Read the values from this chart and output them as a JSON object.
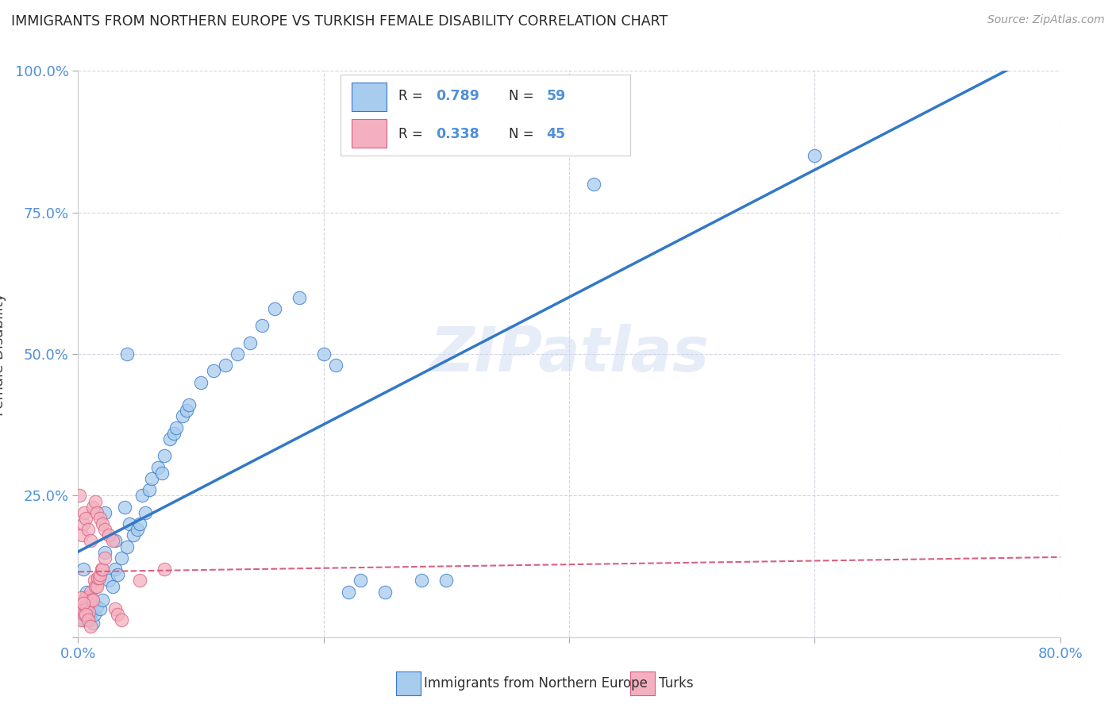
{
  "title": "IMMIGRANTS FROM NORTHERN EUROPE VS TURKISH FEMALE DISABILITY CORRELATION CHART",
  "source": "Source: ZipAtlas.com",
  "ylabel": "Female Disability",
  "watermark": "ZIPatlas",
  "legend_label1": "Immigrants from Northern Europe",
  "legend_label2": "Turks",
  "R1": "0.789",
  "N1": "59",
  "R2": "0.338",
  "N2": "45",
  "xlim": [
    0.0,
    80.0
  ],
  "ylim": [
    0.0,
    100.0
  ],
  "color_blue": "#a8ccee",
  "color_pink": "#f4b0c0",
  "line_blue": "#3378c8",
  "line_pink": "#d86080",
  "background": "#ffffff",
  "grid_color": "#d0d0e0",
  "title_color": "#282828",
  "axis_color": "#5090d8",
  "blue_points_x": [
    0.3,
    0.5,
    0.6,
    0.7,
    0.8,
    0.9,
    1.0,
    1.1,
    1.2,
    1.3,
    1.5,
    1.8,
    2.0,
    2.2,
    2.5,
    2.8,
    3.0,
    3.2,
    3.5,
    3.8,
    4.0,
    4.2,
    4.5,
    4.8,
    5.0,
    5.2,
    5.5,
    5.8,
    6.0,
    6.5,
    6.8,
    7.0,
    7.5,
    7.8,
    8.0,
    8.5,
    8.8,
    9.0,
    10.0,
    11.0,
    12.0,
    13.0,
    14.0,
    15.0,
    16.0,
    18.0,
    20.0,
    21.0,
    22.0,
    23.0,
    25.0,
    28.0,
    30.0,
    2.2,
    3.0,
    4.0,
    42.0,
    60.0,
    0.4
  ],
  "blue_points_y": [
    6.0,
    3.0,
    7.0,
    8.0,
    4.0,
    3.5,
    5.0,
    4.5,
    2.5,
    4.0,
    5.5,
    5.0,
    6.5,
    22.0,
    10.0,
    9.0,
    12.0,
    11.0,
    14.0,
    23.0,
    16.0,
    20.0,
    18.0,
    19.0,
    20.0,
    25.0,
    22.0,
    26.0,
    28.0,
    30.0,
    29.0,
    32.0,
    35.0,
    36.0,
    37.0,
    39.0,
    40.0,
    41.0,
    45.0,
    47.0,
    48.0,
    50.0,
    52.0,
    55.0,
    58.0,
    60.0,
    50.0,
    48.0,
    8.0,
    10.0,
    8.0,
    10.0,
    10.0,
    15.0,
    17.0,
    50.0,
    80.0,
    85.0,
    12.0
  ],
  "pink_points_x": [
    0.2,
    0.3,
    0.4,
    0.5,
    0.6,
    0.7,
    0.8,
    0.9,
    1.0,
    1.1,
    1.2,
    1.3,
    1.4,
    1.5,
    1.6,
    1.7,
    1.8,
    1.9,
    2.0,
    2.2,
    0.1,
    0.3,
    0.4,
    0.5,
    0.6,
    0.8,
    1.0,
    1.2,
    1.4,
    1.5,
    1.8,
    2.0,
    2.2,
    2.5,
    2.8,
    3.0,
    3.2,
    3.5,
    0.2,
    0.4,
    0.6,
    0.8,
    1.0,
    5.0,
    7.0
  ],
  "pink_points_y": [
    3.0,
    5.0,
    6.0,
    4.0,
    7.0,
    5.5,
    6.0,
    4.5,
    8.0,
    6.5,
    6.5,
    10.0,
    9.0,
    9.0,
    10.5,
    10.5,
    11.0,
    12.0,
    12.0,
    14.0,
    25.0,
    18.0,
    20.0,
    22.0,
    21.0,
    19.0,
    17.0,
    23.0,
    24.0,
    22.0,
    21.0,
    20.0,
    19.0,
    18.0,
    17.0,
    5.0,
    4.0,
    3.0,
    7.0,
    6.0,
    4.0,
    3.0,
    2.0,
    10.0,
    12.0
  ]
}
